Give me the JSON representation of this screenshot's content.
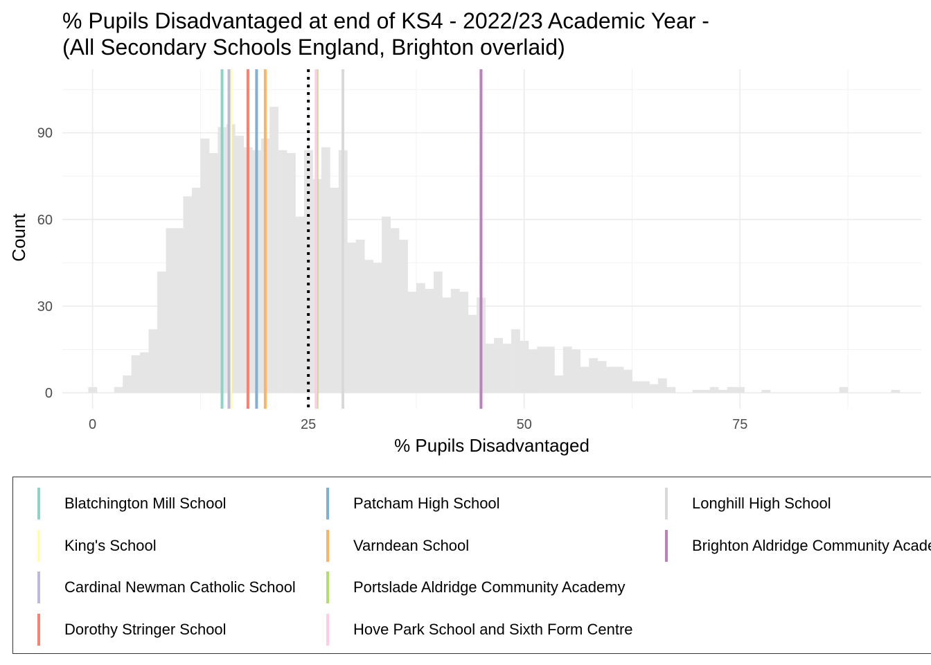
{
  "title": {
    "line1": "% Pupils Disadvantaged at end of KS4 - 2022/23 Academic Year -",
    "line2": "(All Secondary Schools England, Brighton overlaid)"
  },
  "chart_data": {
    "type": "bar",
    "subtype": "histogram",
    "xlabel": "% Pupils Disadvantaged",
    "ylabel": "Count",
    "xlim": [
      -3.5,
      96
    ],
    "ylim": [
      -5.5,
      112
    ],
    "xticks": [
      0,
      25,
      50,
      75
    ],
    "yticks": [
      0,
      30,
      60,
      90
    ],
    "grid": true,
    "bin_width": 1,
    "bar_color": "#e5e5e5",
    "bins": {
      "x": [
        0,
        1,
        2,
        3,
        4,
        5,
        6,
        7,
        8,
        9,
        10,
        11,
        12,
        13,
        14,
        15,
        16,
        17,
        18,
        19,
        20,
        21,
        22,
        23,
        24,
        25,
        26,
        27,
        28,
        29,
        30,
        31,
        32,
        33,
        34,
        35,
        36,
        37,
        38,
        39,
        40,
        41,
        42,
        43,
        44,
        45,
        46,
        47,
        48,
        49,
        50,
        51,
        52,
        53,
        54,
        55,
        56,
        57,
        58,
        59,
        60,
        61,
        62,
        63,
        64,
        65,
        66,
        67,
        68,
        69,
        70,
        71,
        72,
        73,
        74,
        75,
        76,
        77,
        78,
        79,
        80,
        81,
        82,
        83,
        84,
        85,
        86,
        87,
        88,
        89,
        90,
        91,
        92,
        93
      ],
      "counts": [
        2,
        0,
        0,
        2,
        6,
        13,
        14,
        22,
        42,
        57,
        57,
        68,
        71,
        88,
        83,
        92,
        93,
        89,
        85,
        84,
        88,
        99,
        84,
        83,
        61,
        84,
        74,
        85,
        71,
        84,
        52,
        53,
        46,
        45,
        61,
        57,
        53,
        35,
        38,
        36,
        42,
        33,
        36,
        35,
        27,
        33,
        17,
        19,
        17,
        22,
        18,
        15,
        16,
        16,
        6,
        16,
        15,
        9,
        12,
        11,
        9,
        9,
        8,
        4,
        4,
        3,
        5,
        2,
        0,
        0,
        1,
        1,
        2,
        1,
        2,
        2,
        0,
        0,
        1,
        0,
        0,
        0,
        0,
        0,
        0,
        0,
        0,
        2,
        0,
        0,
        0,
        0,
        0,
        1
      ]
    },
    "reference_line": {
      "x": 25,
      "style": "dotted",
      "color": "#000000"
    },
    "school_lines": [
      {
        "name": "Blatchington Mill School",
        "x": 15.0,
        "color": "#8DD3C7"
      },
      {
        "name": "King's School",
        "x": 16.0,
        "color": "#FFFFB3"
      },
      {
        "name": "Cardinal Newman Catholic School",
        "x": 15.8,
        "color": "#BEBADA"
      },
      {
        "name": "Dorothy Stringer School",
        "x": 18.0,
        "color": "#FB8072"
      },
      {
        "name": "Patcham High School",
        "x": 19.0,
        "color": "#80B1D3"
      },
      {
        "name": "Varndean School",
        "x": 20.0,
        "color": "#FDB462"
      },
      {
        "name": "Portslade Aldridge Community Academy",
        "x": 26.0,
        "color": "#B3DE69"
      },
      {
        "name": "Hove Park School and Sixth Form Centre",
        "x": 25.9,
        "color": "#FCCDE5"
      },
      {
        "name": "Longhill High School",
        "x": 29.0,
        "color": "#D9D9D9"
      },
      {
        "name": "Brighton Aldridge Community Academy",
        "x": 45.0,
        "color": "#BC80BD"
      }
    ]
  },
  "legend": {
    "items": [
      {
        "label": "Blatchington Mill School",
        "color": "#8DD3C7"
      },
      {
        "label": "King's School",
        "color": "#FFFFB3"
      },
      {
        "label": "Cardinal Newman Catholic School",
        "color": "#BEBADA"
      },
      {
        "label": "Dorothy Stringer School",
        "color": "#FB8072"
      },
      {
        "label": "Patcham High School",
        "color": "#80B1D3"
      },
      {
        "label": "Varndean School",
        "color": "#FDB462"
      },
      {
        "label": "Portslade Aldridge Community Academy",
        "color": "#B3DE69"
      },
      {
        "label": "Hove Park School and Sixth Form Centre",
        "color": "#FCCDE5"
      },
      {
        "label": "Longhill High School",
        "color": "#D9D9D9"
      },
      {
        "label": "Brighton Aldridge Community Academy",
        "color": "#BC80BD"
      }
    ]
  }
}
